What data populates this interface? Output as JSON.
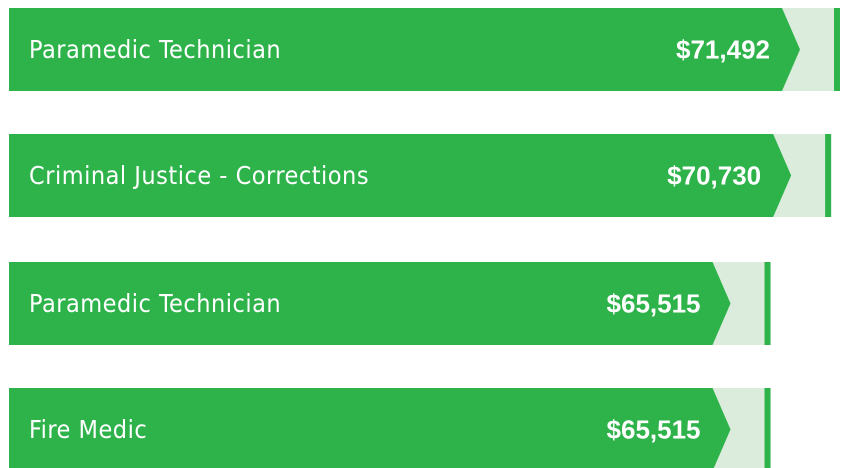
{
  "chart_data": {
    "type": "bar",
    "categories": [
      "Paramedic Technician",
      "Criminal Justice - Corrections",
      "Paramedic Technician",
      "Fire Medic"
    ],
    "values": [
      71492,
      70730,
      65515,
      65515
    ],
    "value_labels": [
      "$71,492",
      "$70,730",
      "$65,515",
      "$65,515"
    ],
    "color": "#2db34a"
  }
}
